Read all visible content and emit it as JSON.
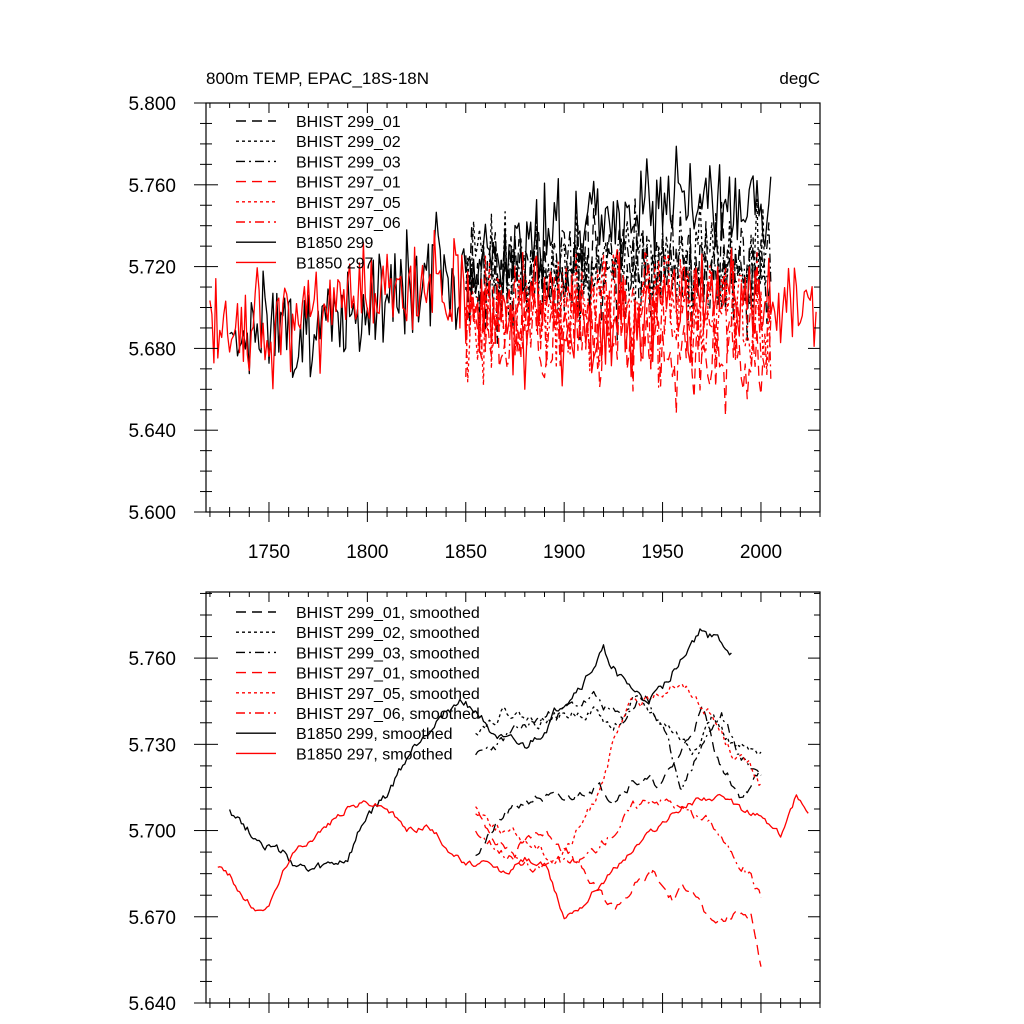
{
  "chart_data": [
    {
      "type": "line",
      "title": "800m TEMP, EPAC_18S-18N",
      "units_label": "degC",
      "xlabel": "",
      "ylabel": "",
      "xlim": [
        1718,
        2030
      ],
      "ylim": [
        5.6,
        5.8
      ],
      "xticks": [
        1750,
        1800,
        1850,
        1900,
        1950,
        2000
      ],
      "xtick_labels": [
        "1750",
        "1800",
        "1850",
        "1900",
        "1950",
        "2000"
      ],
      "yticks": [
        5.6,
        5.64,
        5.68,
        5.72,
        5.76,
        5.8
      ],
      "ytick_labels": [
        "5.600",
        "5.640",
        "5.680",
        "5.720",
        "5.760",
        "5.800"
      ],
      "legend_position": "top-left",
      "series": [
        {
          "name": "BHIST 299_01",
          "color": "#000000",
          "dash": "long-dash",
          "generator": "noise",
          "x": [
            1850,
            1900,
            1950,
            2005
          ],
          "y": [
            5.715,
            5.722,
            5.72,
            5.715
          ],
          "amplitude": 0.03,
          "seed": 11
        },
        {
          "name": "BHIST 299_02",
          "color": "#000000",
          "dash": "short-dash",
          "generator": "noise",
          "x": [
            1850,
            1900,
            1950,
            2005
          ],
          "y": [
            5.718,
            5.72,
            5.725,
            5.718
          ],
          "amplitude": 0.03,
          "seed": 12
        },
        {
          "name": "BHIST 299_03",
          "color": "#000000",
          "dash": "dash-dot",
          "generator": "noise",
          "x": [
            1850,
            1900,
            1950,
            2005
          ],
          "y": [
            5.712,
            5.718,
            5.72,
            5.712
          ],
          "amplitude": 0.03,
          "seed": 13
        },
        {
          "name": "BHIST 297_01",
          "color": "#ff0000",
          "dash": "long-dash",
          "generator": "noise",
          "x": [
            1850,
            1900,
            1950,
            2005
          ],
          "y": [
            5.69,
            5.692,
            5.682,
            5.665
          ],
          "amplitude": 0.03,
          "seed": 14
        },
        {
          "name": "BHIST 297_05",
          "color": "#ff0000",
          "dash": "short-dash",
          "generator": "noise",
          "x": [
            1850,
            1900,
            1950,
            2005
          ],
          "y": [
            5.695,
            5.7,
            5.71,
            5.69
          ],
          "amplitude": 0.03,
          "seed": 15
        },
        {
          "name": "BHIST 297_06",
          "color": "#ff0000",
          "dash": "dash-dot",
          "generator": "noise",
          "x": [
            1850,
            1900,
            1950,
            2005
          ],
          "y": [
            5.692,
            5.695,
            5.7,
            5.688
          ],
          "amplitude": 0.03,
          "seed": 16
        },
        {
          "name": "B1850 299",
          "color": "#000000",
          "dash": "solid",
          "generator": "noise",
          "x": [
            1730,
            1780,
            1830,
            1880,
            1920,
            1970,
            2005
          ],
          "y": [
            5.69,
            5.69,
            5.72,
            5.725,
            5.745,
            5.755,
            5.74
          ],
          "amplitude": 0.028,
          "seed": 17
        },
        {
          "name": "B1850 297",
          "color": "#ff0000",
          "dash": "solid",
          "generator": "noise",
          "x": [
            1720,
            1780,
            1830,
            1880,
            1930,
            1980,
            2028
          ],
          "y": [
            5.685,
            5.7,
            5.708,
            5.69,
            5.695,
            5.705,
            5.7
          ],
          "amplitude": 0.028,
          "seed": 18
        }
      ]
    },
    {
      "type": "line",
      "title": "",
      "xlabel": "",
      "ylabel": "",
      "xlim": [
        1718,
        2030
      ],
      "ylim": [
        5.64,
        5.783
      ],
      "xticks": [
        1750,
        1800,
        1850,
        1900,
        1950,
        2000
      ],
      "xtick_labels": [],
      "yticks": [
        5.64,
        5.67,
        5.7,
        5.73,
        5.76
      ],
      "ytick_labels": [
        "5.640",
        "5.670",
        "5.700",
        "5.730",
        "5.760"
      ],
      "legend_position": "top-left",
      "series": [
        {
          "name": "BHIST 299_01, smoothed",
          "color": "#000000",
          "dash": "long-dash",
          "generator": "smooth",
          "x": [
            1855,
            1870,
            1885,
            1900,
            1915,
            1925,
            1935,
            1950,
            1960,
            1970,
            1980,
            1990,
            2000
          ],
          "y": [
            5.692,
            5.705,
            5.712,
            5.71,
            5.716,
            5.712,
            5.718,
            5.716,
            5.728,
            5.742,
            5.722,
            5.712,
            5.72
          ],
          "amplitude": 0.003,
          "seed": 21
        },
        {
          "name": "BHIST 299_02, smoothed",
          "color": "#000000",
          "dash": "short-dash",
          "generator": "smooth",
          "x": [
            1855,
            1870,
            1885,
            1900,
            1915,
            1925,
            1935,
            1945,
            1955,
            1965,
            1975,
            1985,
            2000
          ],
          "y": [
            5.735,
            5.742,
            5.738,
            5.74,
            5.742,
            5.735,
            5.745,
            5.74,
            5.735,
            5.728,
            5.74,
            5.73,
            5.725
          ],
          "amplitude": 0.003,
          "seed": 22
        },
        {
          "name": "BHIST 299_03, smoothed",
          "color": "#000000",
          "dash": "dash-dot",
          "generator": "smooth",
          "x": [
            1855,
            1870,
            1885,
            1900,
            1915,
            1930,
            1940,
            1950,
            1960,
            1970,
            1980,
            1990,
            2000
          ],
          "y": [
            5.725,
            5.732,
            5.738,
            5.742,
            5.746,
            5.738,
            5.748,
            5.735,
            5.715,
            5.73,
            5.74,
            5.725,
            5.72
          ],
          "amplitude": 0.003,
          "seed": 23
        },
        {
          "name": "BHIST 297_01, smoothed",
          "color": "#ff0000",
          "dash": "long-dash",
          "generator": "smooth",
          "x": [
            1855,
            1865,
            1875,
            1885,
            1895,
            1905,
            1915,
            1925,
            1935,
            1945,
            1955,
            1965,
            1975,
            1985,
            1995,
            2000
          ],
          "y": [
            5.705,
            5.698,
            5.692,
            5.7,
            5.698,
            5.69,
            5.68,
            5.673,
            5.68,
            5.685,
            5.676,
            5.682,
            5.666,
            5.67,
            5.672,
            5.653
          ],
          "amplitude": 0.003,
          "seed": 24
        },
        {
          "name": "BHIST 297_05, smoothed",
          "color": "#ff0000",
          "dash": "short-dash",
          "generator": "smooth",
          "x": [
            1855,
            1865,
            1875,
            1885,
            1895,
            1905,
            1915,
            1925,
            1935,
            1945,
            1955,
            1965,
            1975,
            1985,
            1995,
            2000
          ],
          "y": [
            5.708,
            5.702,
            5.698,
            5.695,
            5.69,
            5.697,
            5.71,
            5.73,
            5.745,
            5.745,
            5.752,
            5.748,
            5.74,
            5.728,
            5.722,
            5.716
          ],
          "amplitude": 0.003,
          "seed": 25
        },
        {
          "name": "BHIST 297_06, smoothed",
          "color": "#ff0000",
          "dash": "dash-dot",
          "generator": "smooth",
          "x": [
            1855,
            1865,
            1875,
            1885,
            1895,
            1905,
            1915,
            1925,
            1935,
            1945,
            1955,
            1965,
            1975,
            1985,
            1995,
            2000
          ],
          "y": [
            5.7,
            5.695,
            5.69,
            5.685,
            5.69,
            5.688,
            5.693,
            5.7,
            5.708,
            5.712,
            5.71,
            5.705,
            5.703,
            5.692,
            5.685,
            5.677
          ],
          "amplitude": 0.003,
          "seed": 26
        },
        {
          "name": "B1850 299, smoothed",
          "color": "#000000",
          "dash": "solid",
          "generator": "smooth",
          "x": [
            1730,
            1740,
            1750,
            1760,
            1770,
            1780,
            1790,
            1800,
            1810,
            1820,
            1830,
            1840,
            1850,
            1860,
            1870,
            1880,
            1890,
            1900,
            1910,
            1920,
            1930,
            1940,
            1950,
            1960,
            1970,
            1980,
            1985
          ],
          "y": [
            5.708,
            5.7,
            5.695,
            5.69,
            5.685,
            5.687,
            5.69,
            5.705,
            5.712,
            5.725,
            5.735,
            5.742,
            5.745,
            5.738,
            5.73,
            5.728,
            5.735,
            5.745,
            5.752,
            5.762,
            5.752,
            5.745,
            5.748,
            5.762,
            5.77,
            5.765,
            5.762
          ],
          "amplitude": 0.003,
          "seed": 27
        },
        {
          "name": "B1850 297, smoothed",
          "color": "#ff0000",
          "dash": "solid",
          "generator": "smooth",
          "x": [
            1724,
            1730,
            1738,
            1745,
            1752,
            1760,
            1770,
            1780,
            1790,
            1800,
            1810,
            1820,
            1830,
            1840,
            1850,
            1860,
            1870,
            1880,
            1890,
            1900,
            1910,
            1920,
            1930,
            1940,
            1950,
            1960,
            1970,
            1980,
            1990,
            2000,
            2010,
            2018,
            2024
          ],
          "y": [
            5.688,
            5.684,
            5.676,
            5.671,
            5.677,
            5.69,
            5.697,
            5.702,
            5.708,
            5.71,
            5.708,
            5.7,
            5.702,
            5.695,
            5.688,
            5.688,
            5.685,
            5.69,
            5.688,
            5.67,
            5.675,
            5.683,
            5.69,
            5.697,
            5.703,
            5.708,
            5.712,
            5.711,
            5.707,
            5.705,
            5.698,
            5.712,
            5.708
          ],
          "amplitude": 0.002,
          "seed": 28
        }
      ]
    }
  ]
}
